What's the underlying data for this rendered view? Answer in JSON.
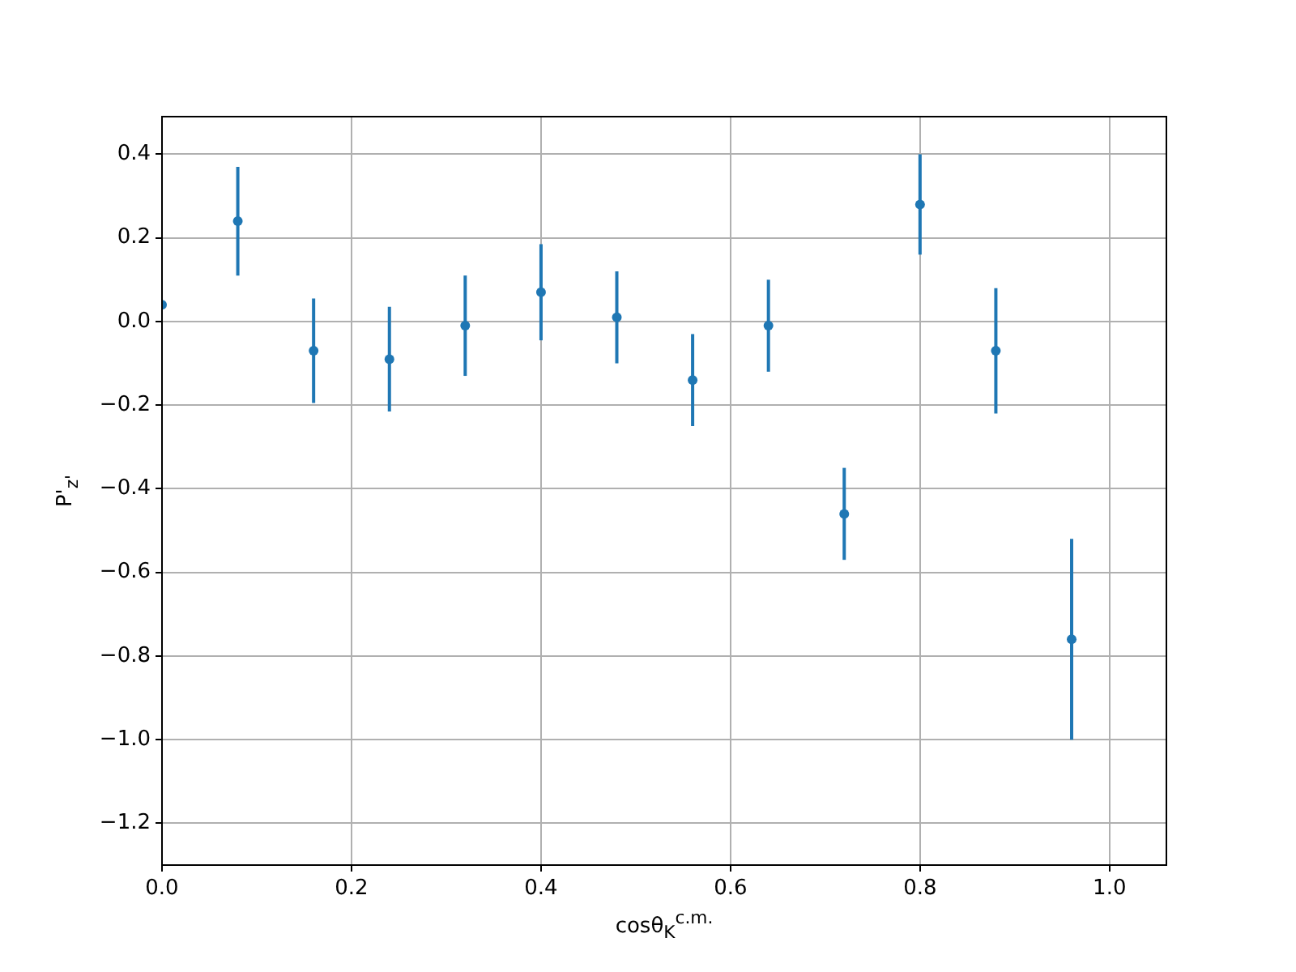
{
  "chart_data": {
    "type": "scatter",
    "xlabel": "cosθ$_{K}$$^{c.m.}$",
    "ylabel": "P'$_{z'}$",
    "x": [
      0,
      0.08,
      0.16,
      0.24,
      0.32,
      0.4,
      0.48,
      0.56,
      0.64,
      0.72,
      0.8,
      0.88,
      0.96
    ],
    "series": [
      {
        "color": "#1f77b4",
        "values": [
          0.04,
          0.24,
          -0.07,
          -0.09,
          -0.01,
          0.07,
          0.01,
          -0.14,
          -0.01,
          -0.46,
          0.28,
          -0.07,
          -0.76
        ],
        "errors": [
          null,
          0.13,
          0.125,
          0.125,
          0.12,
          0.115,
          0.11,
          0.11,
          0.11,
          0.11,
          0.12,
          0.15,
          0.24
        ]
      }
    ],
    "xlim": [
      0,
      1.06
    ],
    "ylim": [
      -1.3,
      0.49
    ],
    "xticks": [
      {
        "value": 0,
        "label": "0.0"
      },
      0.2,
      0.4,
      0.6,
      0.8,
      {
        "value": 1,
        "label": "1.0"
      }
    ],
    "yticks": [
      {
        "value": -1.2,
        "label": "−1.2"
      },
      {
        "value": -1,
        "label": "−1.0"
      },
      {
        "value": -0.8,
        "label": "−0.8"
      },
      {
        "value": -0.6,
        "label": "−0.6"
      },
      {
        "value": -0.4,
        "label": "−0.4"
      },
      {
        "value": -0.2,
        "label": "−0.2"
      },
      {
        "value": 0,
        "label": "0.0"
      },
      0.2,
      0.4
    ],
    "grid": true,
    "marker": "circle",
    "legend": false
  }
}
